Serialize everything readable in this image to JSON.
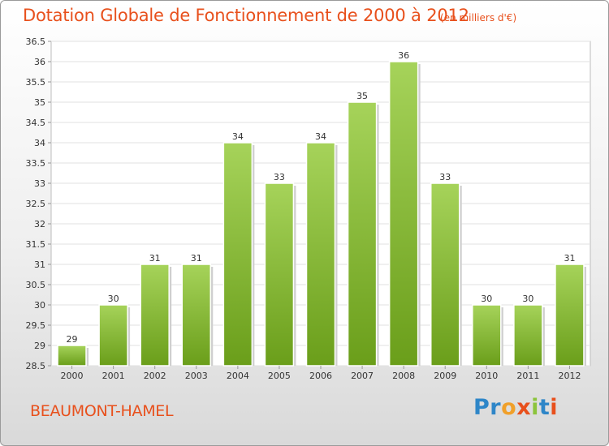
{
  "title": "Dotation Globale de Fonctionnement de 2000 à 2012",
  "subtitle": "(en milliers d'€)",
  "commune": "BEAUMONT-HAMEL",
  "logo": {
    "letters": [
      "P",
      "r",
      "o",
      "x",
      "i",
      "t",
      "i"
    ],
    "colors": [
      "#2e86c8",
      "#2e86c8",
      "#f0a02a",
      "#e8501c",
      "#8cc43c",
      "#2e86c8",
      "#e8501c"
    ]
  },
  "colors": {
    "accent": "#e8501c",
    "bar_light": "#a6d35a",
    "bar_dark": "#6a9e1a"
  },
  "chart_data": {
    "type": "bar",
    "categories": [
      "2000",
      "2001",
      "2002",
      "2003",
      "2004",
      "2005",
      "2006",
      "2007",
      "2008",
      "2009",
      "2010",
      "2011",
      "2012"
    ],
    "values": [
      29,
      30,
      31,
      31,
      34,
      33,
      34,
      35,
      36,
      33,
      30,
      30,
      31
    ],
    "ylim": [
      28.5,
      36.5
    ],
    "yticks": [
      "28.5",
      "29",
      "29.5",
      "30",
      "30.5",
      "31",
      "31.5",
      "32",
      "32.5",
      "33",
      "33.5",
      "34",
      "34.5",
      "35",
      "35.5",
      "36",
      "36.5"
    ],
    "grid": true,
    "data_labels": true
  }
}
